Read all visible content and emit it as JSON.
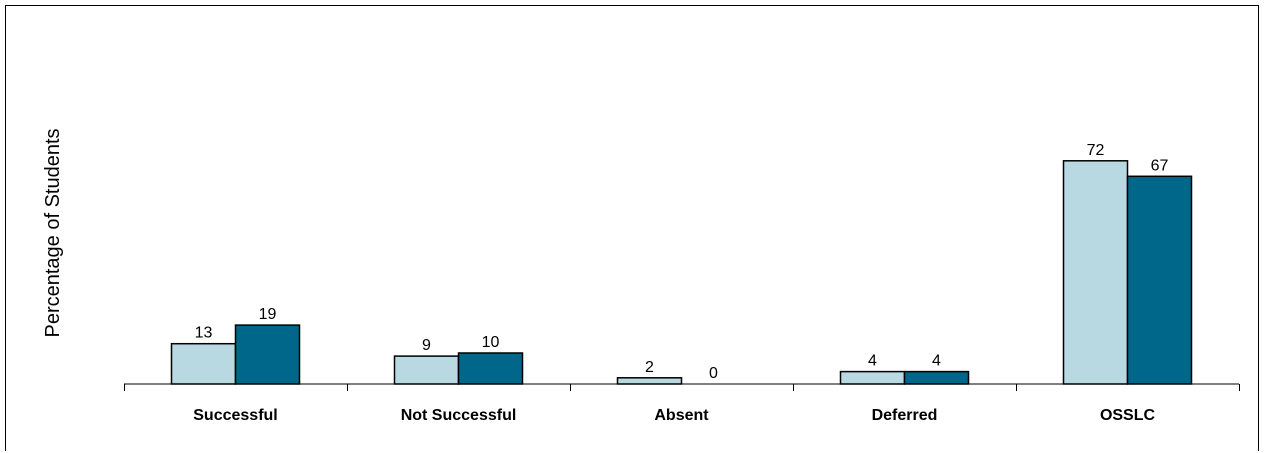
{
  "chart_data": {
    "type": "bar",
    "title": "",
    "xlabel": "",
    "ylabel": "Percentage of Students",
    "categories": [
      "Successful",
      "Not Successful",
      "Absent",
      "Deferred",
      "OSSLC"
    ],
    "series": [
      {
        "values": [
          13,
          9,
          2,
          4,
          72
        ],
        "color": "#b8d8e2"
      },
      {
        "values": [
          19,
          10,
          0,
          4,
          67
        ],
        "color": "#00678a"
      }
    ],
    "ylim": [
      0,
      100
    ],
    "grid": false,
    "legend": "none"
  }
}
